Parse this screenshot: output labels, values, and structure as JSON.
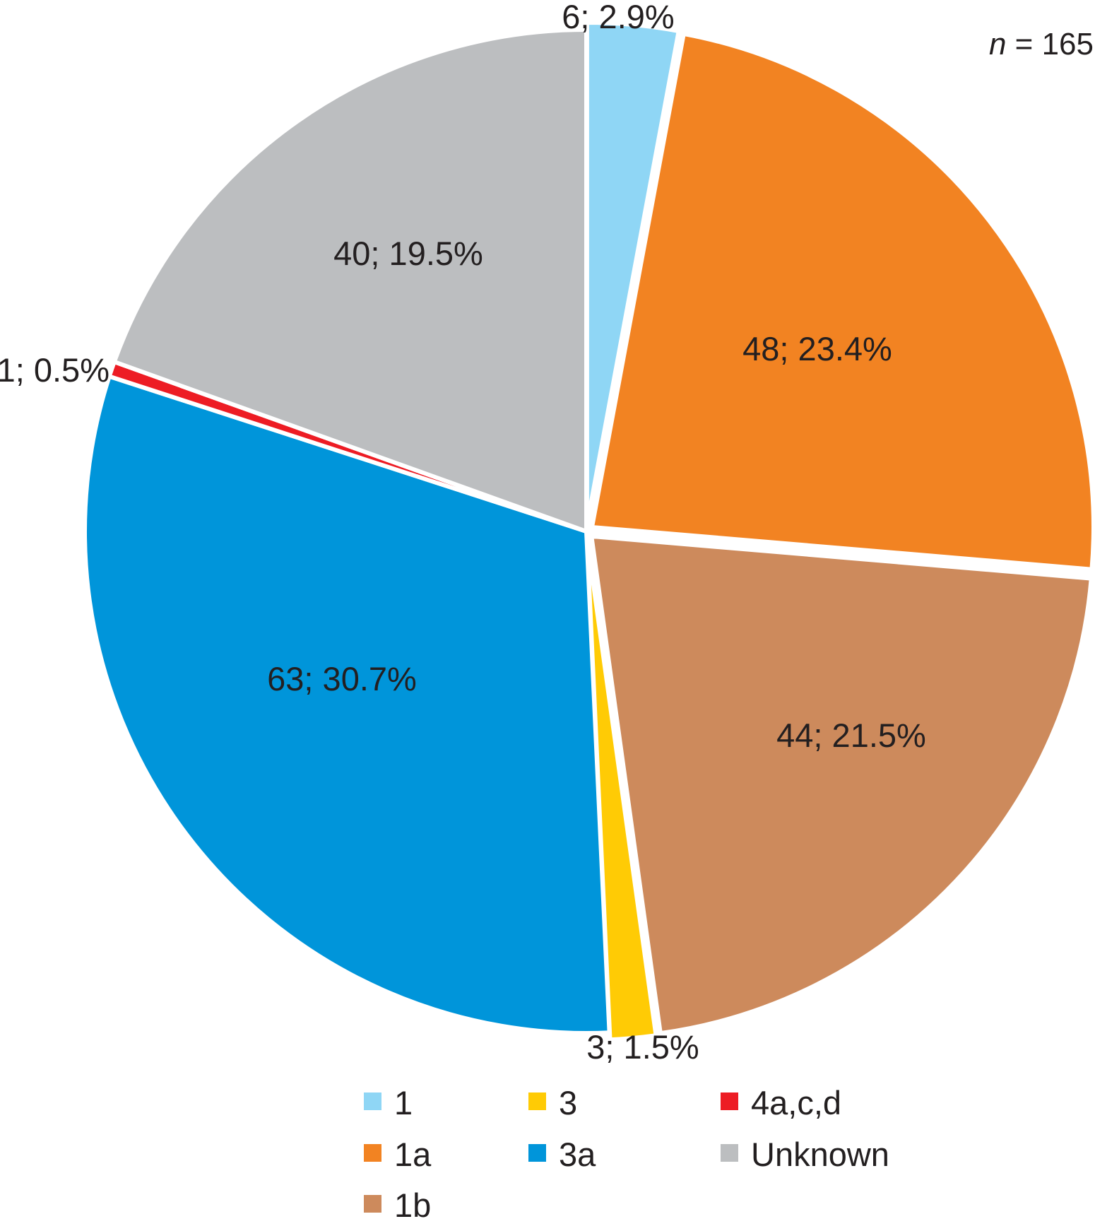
{
  "chart_data": {
    "type": "pie",
    "sample_size_label": {
      "symbol": "n",
      "text": " = 165"
    },
    "slices": [
      {
        "name": "1",
        "count": 6,
        "percent": 2.9,
        "label": "6; 2.9%",
        "color": "#8fd6f5"
      },
      {
        "name": "1a",
        "count": 48,
        "percent": 23.4,
        "label": "48; 23.4%",
        "color": "#f28322"
      },
      {
        "name": "1b",
        "count": 44,
        "percent": 21.5,
        "label": "44; 21.5%",
        "color": "#cd8a5c"
      },
      {
        "name": "3",
        "count": 3,
        "percent": 1.5,
        "label": "3; 1.5%",
        "color": "#ffcb05"
      },
      {
        "name": "3a",
        "count": 63,
        "percent": 30.7,
        "label": "63; 30.7%",
        "color": "#0095da"
      },
      {
        "name": "4a,c,d",
        "count": 1,
        "percent": 0.5,
        "label": "1; 0.5%",
        "color": "#ed1c24"
      },
      {
        "name": "Unknown",
        "count": 40,
        "percent": 19.5,
        "label": "40; 19.5%",
        "color": "#bcbec0"
      }
    ],
    "legend": {
      "placement": "bottom",
      "items": [
        {
          "label": "1",
          "color": "#8fd6f5"
        },
        {
          "label": "3",
          "color": "#ffcb05"
        },
        {
          "label": "4a,c,d",
          "color": "#ed1c24"
        },
        {
          "label": "1a",
          "color": "#f28322"
        },
        {
          "label": "3a",
          "color": "#0095da"
        },
        {
          "label": "Unknown",
          "color": "#bcbec0"
        },
        {
          "label": "1b",
          "color": "#cd8a5c"
        }
      ]
    }
  }
}
